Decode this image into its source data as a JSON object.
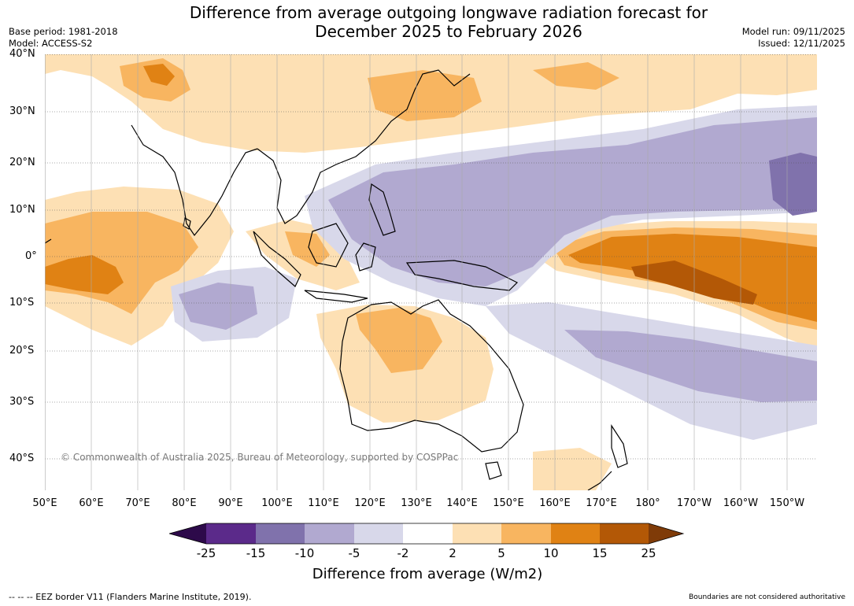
{
  "title_line1": "Difference from average outgoing longwave radiation forecast for",
  "title_line2": "December 2025 to February 2026",
  "base_period": "Base period: 1981-2018",
  "model": "Model: ACCESS-S2",
  "model_run": "Model run: 09/11/2025",
  "issued": "Issued: 12/11/2025",
  "copyright": "© Commonwealth of Australia 2025, Bureau of Meteorology, supported by COSPPac",
  "lat_labels": [
    "40°N",
    "30°N",
    "20°N",
    "10°N",
    "0°",
    "10°S",
    "20°S",
    "30°S",
    "40°S"
  ],
  "lon_labels": [
    "50°E",
    "60°E",
    "70°E",
    "80°E",
    "90°E",
    "100°E",
    "110°E",
    "120°E",
    "130°E",
    "140°E",
    "150°E",
    "160°E",
    "170°E",
    "180°",
    "170°W",
    "160°W",
    "150°W"
  ],
  "colorbar": {
    "ticks": [
      "-25",
      "-15",
      "-10",
      "-5",
      "-2",
      "2",
      "5",
      "10",
      "15",
      "25"
    ],
    "title": "Difference from average (W/m2)",
    "colors": {
      "lt_neg25": "#2d0a4a",
      "neg25_neg15": "#5b2a8a",
      "neg15_neg10": "#8072ac",
      "neg10_neg5": "#b1a9d0",
      "neg5_neg2": "#d8d8ea",
      "neg2_2": "#ffffff",
      "pos2_5": "#fde0b4",
      "pos5_10": "#f8b560",
      "pos10_15": "#e08214",
      "pos15_25": "#b35806",
      "gt_25": "#7f3b08"
    }
  },
  "eez_legend": "--  --  -- EEZ border V11 (Flanders Marine Institute, 2019).",
  "boundary_note": "Boundaries are not considered authoritative"
}
